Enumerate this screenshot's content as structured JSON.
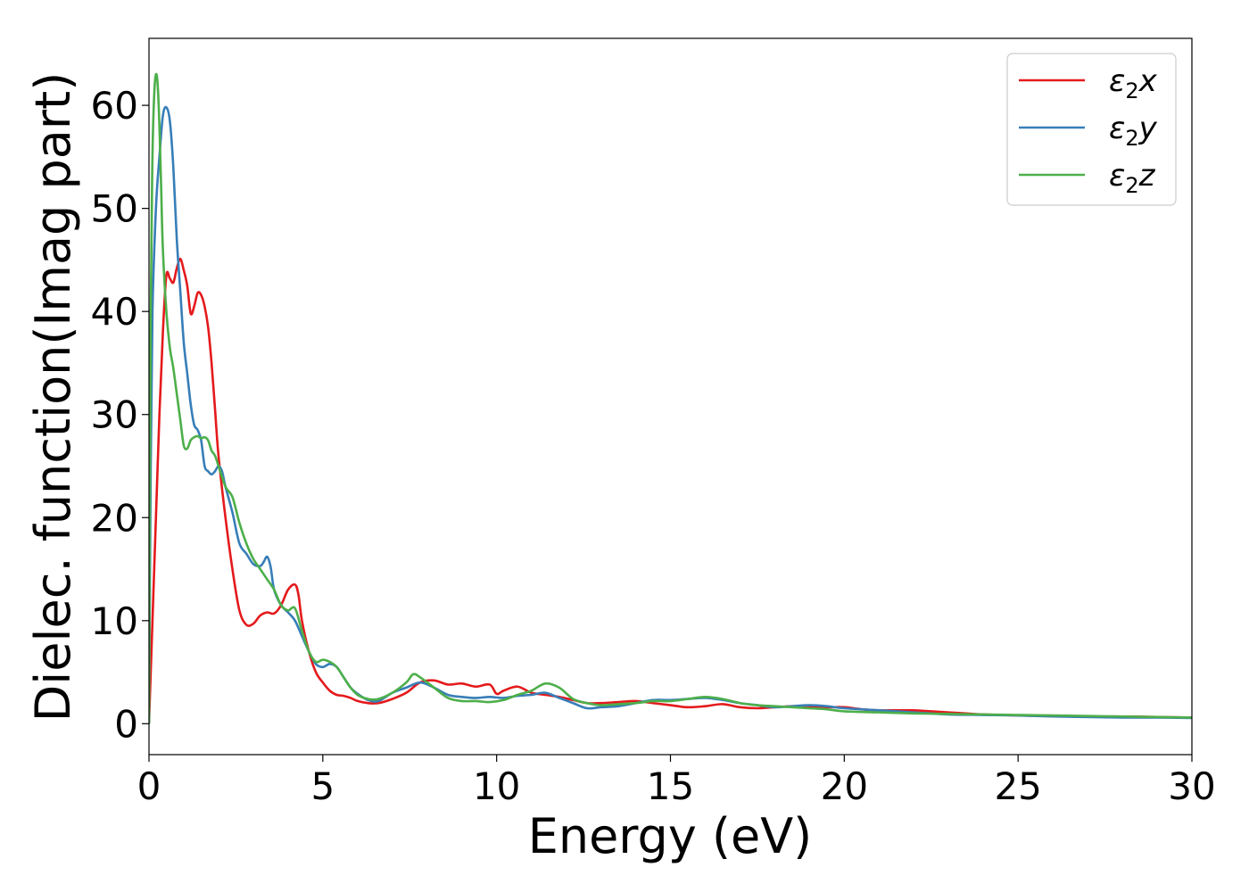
{
  "chart_data": {
    "type": "line",
    "title": "",
    "xlabel": "Energy (eV)",
    "ylabel": "Dielec. function(Imag part)",
    "xlim": [
      0,
      30
    ],
    "ylim": [
      -3,
      66.5
    ],
    "xticks": [
      0,
      5,
      10,
      15,
      20,
      25,
      30
    ],
    "yticks": [
      0,
      10,
      20,
      30,
      40,
      50,
      60
    ],
    "xtick_labels": [
      "0",
      "5",
      "10",
      "15",
      "20",
      "25",
      "30"
    ],
    "ytick_labels": [
      "0",
      "10",
      "20",
      "30",
      "40",
      "50",
      "60"
    ],
    "grid": false,
    "legend_position": "top-right",
    "series": [
      {
        "name": "ε₂x",
        "name_base": "ε",
        "name_sub": "2",
        "name_tail": "x",
        "color": "#e41a1c",
        "x": [
          0,
          0.1,
          0.2,
          0.3,
          0.4,
          0.5,
          0.6,
          0.7,
          0.8,
          0.9,
          1.0,
          1.1,
          1.2,
          1.3,
          1.4,
          1.5,
          1.6,
          1.7,
          1.8,
          1.9,
          2.0,
          2.2,
          2.4,
          2.6,
          2.8,
          3.0,
          3.2,
          3.4,
          3.6,
          3.8,
          4.0,
          4.2,
          4.3,
          4.4,
          4.6,
          4.8,
          5.0,
          5.2,
          5.4,
          5.6,
          5.8,
          6.0,
          6.3,
          6.6,
          7.0,
          7.4,
          7.8,
          8.2,
          8.6,
          9.0,
          9.4,
          9.8,
          10.0,
          10.2,
          10.6,
          11.0,
          11.4,
          11.8,
          12.2,
          12.6,
          13.0,
          13.5,
          14.0,
          14.5,
          15.0,
          15.5,
          16.0,
          16.5,
          17.0,
          17.5,
          18.0,
          18.5,
          19.0,
          19.5,
          20.0,
          20.5,
          21.0,
          21.5,
          22.0,
          22.5,
          23.0,
          23.5,
          24.0,
          25.0,
          26.0,
          27.0,
          28.0,
          29.0,
          30.0
        ],
        "y": [
          0,
          10,
          20,
          30,
          38,
          43.5,
          43.2,
          42.8,
          44.2,
          45.1,
          44.0,
          42.5,
          39.8,
          40.5,
          41.8,
          41.6,
          40.5,
          38.5,
          35.0,
          30.5,
          26.0,
          20.0,
          15.0,
          11.0,
          9.6,
          9.7,
          10.5,
          10.8,
          10.7,
          11.5,
          13.0,
          13.5,
          12.5,
          10.0,
          7.0,
          5.0,
          4.0,
          3.2,
          2.8,
          2.7,
          2.5,
          2.2,
          2.0,
          2.0,
          2.4,
          3.0,
          4.0,
          4.2,
          3.8,
          3.9,
          3.6,
          3.8,
          2.9,
          3.2,
          3.6,
          3.0,
          2.8,
          2.6,
          2.3,
          2.0,
          2.0,
          2.1,
          2.2,
          2.0,
          1.8,
          1.6,
          1.7,
          1.9,
          1.6,
          1.5,
          1.6,
          1.7,
          1.7,
          1.6,
          1.6,
          1.4,
          1.3,
          1.3,
          1.3,
          1.2,
          1.1,
          1.0,
          0.9,
          0.8,
          0.75,
          0.7,
          0.7,
          0.65,
          0.6
        ]
      },
      {
        "name": "ε₂y",
        "name_base": "ε",
        "name_sub": "2",
        "name_tail": "y",
        "color": "#377eb8",
        "x": [
          0,
          0.05,
          0.1,
          0.2,
          0.3,
          0.4,
          0.5,
          0.6,
          0.7,
          0.8,
          0.9,
          1.0,
          1.1,
          1.2,
          1.3,
          1.4,
          1.5,
          1.6,
          1.7,
          1.8,
          1.9,
          2.0,
          2.1,
          2.2,
          2.4,
          2.6,
          2.8,
          3.0,
          3.2,
          3.3,
          3.4,
          3.5,
          3.6,
          3.8,
          4.0,
          4.2,
          4.4,
          4.6,
          4.8,
          5.0,
          5.2,
          5.4,
          5.6,
          5.8,
          6.0,
          6.3,
          6.6,
          7.0,
          7.4,
          7.8,
          8.2,
          8.6,
          9.0,
          9.4,
          9.8,
          10.2,
          10.6,
          11.0,
          11.4,
          11.8,
          12.2,
          12.6,
          13.0,
          13.5,
          14.0,
          14.5,
          15.0,
          15.5,
          16.0,
          16.5,
          17.0,
          17.5,
          18.0,
          18.5,
          19.0,
          19.5,
          20.0,
          21.0,
          22.0,
          23.0,
          24.0,
          25.0,
          26.0,
          27.0,
          28.0,
          29.0,
          30.0
        ],
        "y": [
          0,
          25,
          40,
          50,
          55,
          59.0,
          59.8,
          58.5,
          54.0,
          47.0,
          42.0,
          37.0,
          34.0,
          31.0,
          29.0,
          28.5,
          27.5,
          25.0,
          24.5,
          24.2,
          24.5,
          25.0,
          24.5,
          23.0,
          20.5,
          17.5,
          16.5,
          15.5,
          15.3,
          15.7,
          16.2,
          15.2,
          13.0,
          11.5,
          10.8,
          10.0,
          8.5,
          7.0,
          5.8,
          5.5,
          5.8,
          5.5,
          4.5,
          3.5,
          2.9,
          2.3,
          2.2,
          3.0,
          3.5,
          4.0,
          3.5,
          2.8,
          2.6,
          2.5,
          2.6,
          2.5,
          2.7,
          2.8,
          3.0,
          2.5,
          2.0,
          1.5,
          1.6,
          1.7,
          2.0,
          2.3,
          2.3,
          2.4,
          2.5,
          2.3,
          2.0,
          1.8,
          1.6,
          1.7,
          1.8,
          1.7,
          1.5,
          1.3,
          1.1,
          0.9,
          0.85,
          0.8,
          0.7,
          0.65,
          0.6,
          0.6,
          0.55
        ]
      },
      {
        "name": "ε₂z",
        "name_base": "ε",
        "name_sub": "2",
        "name_tail": "z",
        "color": "#4daf4a",
        "x": [
          0,
          0.05,
          0.1,
          0.15,
          0.2,
          0.25,
          0.3,
          0.35,
          0.4,
          0.5,
          0.6,
          0.7,
          0.8,
          0.9,
          1.0,
          1.1,
          1.2,
          1.3,
          1.4,
          1.5,
          1.6,
          1.7,
          1.8,
          1.9,
          2.0,
          2.2,
          2.4,
          2.6,
          2.8,
          3.0,
          3.2,
          3.4,
          3.6,
          3.8,
          4.0,
          4.2,
          4.4,
          4.6,
          4.8,
          5.0,
          5.2,
          5.4,
          5.6,
          5.8,
          6.0,
          6.3,
          6.6,
          7.0,
          7.4,
          7.6,
          7.8,
          8.2,
          8.6,
          9.0,
          9.4,
          9.8,
          10.2,
          10.6,
          11.0,
          11.4,
          11.8,
          12.2,
          12.6,
          13.0,
          13.5,
          14.0,
          14.5,
          15.0,
          15.5,
          16.0,
          16.5,
          17.0,
          17.5,
          18.0,
          18.5,
          19.0,
          19.5,
          20.0,
          21.0,
          22.0,
          23.0,
          24.0,
          25.0,
          26.0,
          27.0,
          28.0,
          29.0,
          30.0
        ],
        "y": [
          0,
          40,
          55,
          61,
          63.0,
          62.0,
          58.0,
          52.0,
          46.0,
          40.0,
          36.5,
          34.5,
          32.0,
          29.5,
          27.0,
          26.7,
          27.5,
          27.8,
          27.9,
          27.7,
          27.8,
          27.5,
          26.5,
          26.0,
          25.0,
          23.0,
          22.0,
          19.5,
          17.5,
          16.0,
          15.0,
          14.0,
          13.0,
          11.5,
          11.0,
          11.2,
          9.0,
          7.0,
          6.0,
          6.2,
          6.0,
          5.5,
          4.5,
          3.5,
          2.8,
          2.4,
          2.4,
          3.0,
          4.0,
          4.8,
          4.5,
          3.5,
          2.5,
          2.2,
          2.2,
          2.1,
          2.3,
          2.8,
          3.2,
          3.9,
          3.5,
          2.4,
          2.0,
          1.8,
          1.9,
          2.0,
          2.2,
          2.2,
          2.4,
          2.6,
          2.4,
          2.0,
          1.8,
          1.7,
          1.6,
          1.5,
          1.4,
          1.2,
          1.1,
          1.0,
          0.95,
          0.9,
          0.85,
          0.8,
          0.75,
          0.7,
          0.65,
          0.6
        ]
      }
    ]
  }
}
